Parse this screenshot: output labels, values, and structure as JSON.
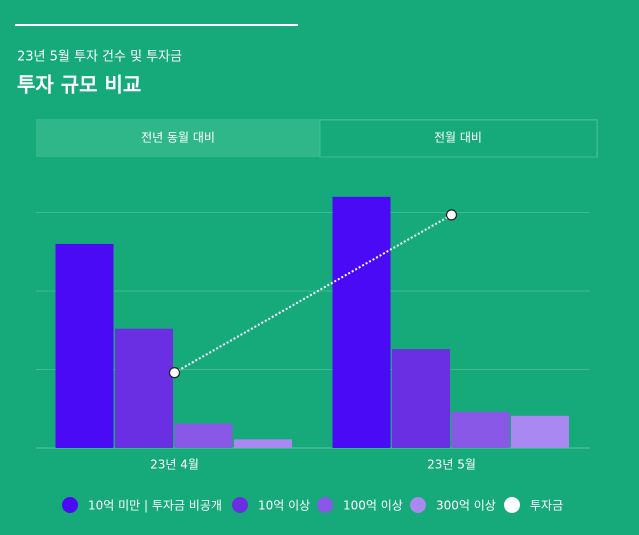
{
  "header": {
    "subtitle": "23년 5월 투자 건수 및 투자금",
    "title": "투자 규모 비교"
  },
  "tabs": [
    "전년 동월 대비",
    "전월 대비"
  ],
  "chart_data": {
    "type": "bar",
    "categories": [
      "23년 4월",
      "23년 5월"
    ],
    "series": [
      {
        "name": "10억 미만 | 투자금 비공개",
        "color": "#4b0af5",
        "values": [
          2.6,
          3.2
        ]
      },
      {
        "name": "10억 이상",
        "color": "#6a2fe2",
        "values": [
          1.52,
          1.26
        ]
      },
      {
        "name": "100억 이상",
        "color": "#8a58e6",
        "values": [
          0.31,
          0.46
        ]
      },
      {
        "name": "300억 이상",
        "color": "#a988f2",
        "values": [
          0.11,
          0.41
        ]
      },
      {
        "name": "투자금",
        "color": "#ffffff",
        "type": "line",
        "values": [
          0.96,
          2.97
        ]
      }
    ],
    "ylim": [
      0,
      3.3
    ],
    "yticks": [
      0,
      1,
      2,
      3
    ],
    "grid": true
  }
}
